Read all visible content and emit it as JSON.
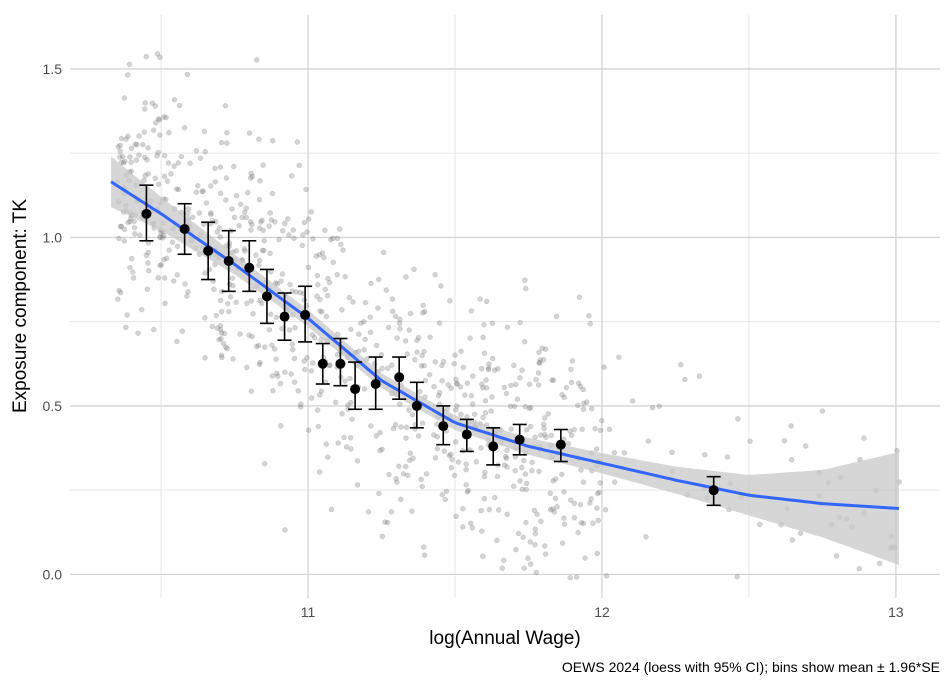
{
  "chart_data": {
    "type": "scatter",
    "title": "",
    "xlabel": "log(Annual Wage)",
    "ylabel": "Exposure component: TK",
    "caption": "OEWS 2024 (loess with 95% CI); bins show mean ± 1.96*SE",
    "xlim": [
      10.19,
      13.15
    ],
    "ylim": [
      -0.07,
      1.66
    ],
    "x_ticks": [
      11,
      12,
      13
    ],
    "x_tick_labels": [
      "11",
      "12",
      "13"
    ],
    "y_ticks": [
      0.0,
      0.5,
      1.0,
      1.5
    ],
    "y_tick_labels": [
      "0.0",
      "0.5",
      "1.0",
      "1.5"
    ],
    "grid": true,
    "colors": {
      "points": "#808080",
      "loess": "#3366ff",
      "ci_band": "#c8c8c8",
      "bins": "#000000",
      "grid": "#d9d9d9"
    },
    "loess": {
      "x": [
        10.33,
        10.5,
        10.75,
        11.0,
        11.25,
        11.5,
        11.75,
        12.0,
        12.25,
        12.5,
        12.75,
        13.02
      ],
      "y": [
        1.165,
        1.07,
        0.92,
        0.76,
        0.575,
        0.45,
        0.38,
        0.33,
        0.28,
        0.235,
        0.21,
        0.195
      ],
      "ci_half_width": [
        0.075,
        0.05,
        0.03,
        0.025,
        0.022,
        0.022,
        0.025,
        0.03,
        0.04,
        0.06,
        0.1,
        0.17
      ]
    },
    "bins": [
      {
        "x": 10.45,
        "mean": 1.07,
        "lo": 0.99,
        "hi": 1.155
      },
      {
        "x": 10.58,
        "mean": 1.025,
        "lo": 0.95,
        "hi": 1.1
      },
      {
        "x": 10.66,
        "mean": 0.96,
        "lo": 0.875,
        "hi": 1.045
      },
      {
        "x": 10.73,
        "mean": 0.93,
        "lo": 0.84,
        "hi": 1.02
      },
      {
        "x": 10.8,
        "mean": 0.91,
        "lo": 0.84,
        "hi": 0.99
      },
      {
        "x": 10.86,
        "mean": 0.825,
        "lo": 0.745,
        "hi": 0.905
      },
      {
        "x": 10.92,
        "mean": 0.765,
        "lo": 0.695,
        "hi": 0.835
      },
      {
        "x": 10.99,
        "mean": 0.77,
        "lo": 0.69,
        "hi": 0.855
      },
      {
        "x": 11.05,
        "mean": 0.625,
        "lo": 0.565,
        "hi": 0.685
      },
      {
        "x": 11.11,
        "mean": 0.625,
        "lo": 0.56,
        "hi": 0.7
      },
      {
        "x": 11.16,
        "mean": 0.55,
        "lo": 0.49,
        "hi": 0.63
      },
      {
        "x": 11.23,
        "mean": 0.565,
        "lo": 0.49,
        "hi": 0.645
      },
      {
        "x": 11.31,
        "mean": 0.585,
        "lo": 0.52,
        "hi": 0.645
      },
      {
        "x": 11.37,
        "mean": 0.5,
        "lo": 0.435,
        "hi": 0.57
      },
      {
        "x": 11.46,
        "mean": 0.44,
        "lo": 0.385,
        "hi": 0.5
      },
      {
        "x": 11.54,
        "mean": 0.415,
        "lo": 0.365,
        "hi": 0.46
      },
      {
        "x": 11.63,
        "mean": 0.38,
        "lo": 0.325,
        "hi": 0.435
      },
      {
        "x": 11.72,
        "mean": 0.4,
        "lo": 0.355,
        "hi": 0.445
      },
      {
        "x": 11.86,
        "mean": 0.385,
        "lo": 0.335,
        "hi": 0.43
      },
      {
        "x": 12.38,
        "mean": 0.25,
        "lo": 0.205,
        "hi": 0.29
      }
    ]
  }
}
